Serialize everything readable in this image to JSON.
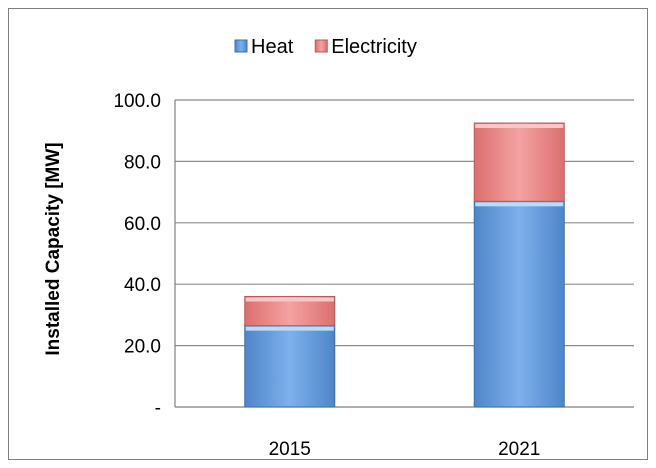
{
  "chart_data": {
    "type": "bar",
    "stacked": true,
    "title": "",
    "xlabel": "",
    "ylabel": "Installed Capacity [MW]",
    "categories": [
      "2015",
      "2021"
    ],
    "series": [
      {
        "name": "Heat",
        "values": [
          26.5,
          67.0
        ],
        "color": "#6fa3e0"
      },
      {
        "name": "Electricity",
        "values": [
          9.5,
          25.5
        ],
        "color": "#f08c8c"
      }
    ],
    "ylim": [
      0,
      100
    ],
    "yticks": [
      0,
      20,
      40,
      60,
      80,
      100
    ],
    "ytick_labels": [
      "-",
      "20.0",
      "40.0",
      "60.0",
      "80.0",
      "100.0"
    ],
    "grid": true,
    "legend_position": "top"
  }
}
